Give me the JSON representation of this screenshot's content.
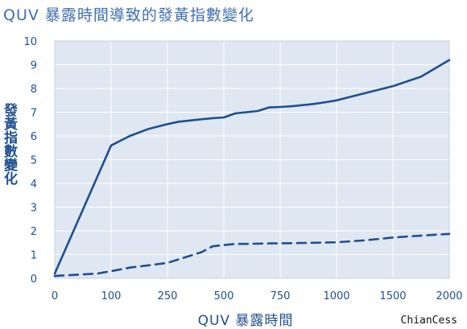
{
  "title": "QUV 暴露時間導致的發黃指數變化",
  "watermark": "ChianCess",
  "colors": {
    "plot_bg": "#dfe7f2",
    "grid": "#ffffff",
    "line": "#1f4f8f",
    "text": "#1f4f8f"
  },
  "chart_data": {
    "type": "line",
    "title": "QUV 暴露時間導致的發黃指數變化",
    "xlabel": "QUV 暴露時間",
    "ylabel": "發黃指數變化",
    "x_ticks": [
      "0",
      "100",
      "250",
      "500",
      "750",
      "1000",
      "1500",
      "2000"
    ],
    "y_ticks": [
      "0",
      "1",
      "2",
      "3",
      "4",
      "5",
      "6",
      "7",
      "8",
      "9",
      "10"
    ],
    "ylim": [
      0,
      10
    ],
    "grid": true,
    "series": [
      {
        "style": "solid",
        "points": [
          [
            0,
            0.2
          ],
          [
            100,
            5.6
          ],
          [
            150,
            6.0
          ],
          [
            200,
            6.3
          ],
          [
            250,
            6.5
          ],
          [
            300,
            6.6
          ],
          [
            350,
            6.65
          ],
          [
            400,
            6.7
          ],
          [
            450,
            6.75
          ],
          [
            500,
            6.78
          ],
          [
            550,
            6.95
          ],
          [
            600,
            7.0
          ],
          [
            650,
            7.05
          ],
          [
            700,
            7.2
          ],
          [
            750,
            7.22
          ],
          [
            800,
            7.25
          ],
          [
            850,
            7.3
          ],
          [
            900,
            7.35
          ],
          [
            950,
            7.42
          ],
          [
            1000,
            7.5
          ],
          [
            1250,
            7.8
          ],
          [
            1500,
            8.1
          ],
          [
            1750,
            8.5
          ],
          [
            2000,
            9.2
          ]
        ]
      },
      {
        "style": "dashed",
        "points": [
          [
            0,
            0.1
          ],
          [
            75,
            0.2
          ],
          [
            100,
            0.3
          ],
          [
            150,
            0.45
          ],
          [
            200,
            0.55
          ],
          [
            250,
            0.65
          ],
          [
            300,
            0.8
          ],
          [
            350,
            0.95
          ],
          [
            400,
            1.1
          ],
          [
            450,
            1.35
          ],
          [
            500,
            1.4
          ],
          [
            550,
            1.45
          ],
          [
            600,
            1.45
          ],
          [
            700,
            1.47
          ],
          [
            800,
            1.48
          ],
          [
            900,
            1.5
          ],
          [
            1000,
            1.52
          ],
          [
            1250,
            1.6
          ],
          [
            1500,
            1.72
          ],
          [
            1750,
            1.8
          ],
          [
            2000,
            1.87
          ]
        ]
      }
    ]
  }
}
